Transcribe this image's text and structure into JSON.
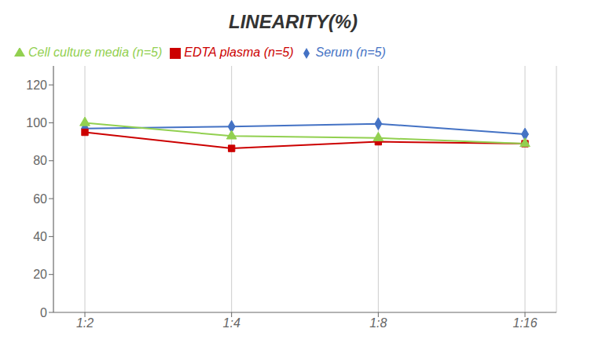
{
  "chart_data": {
    "type": "line",
    "title": "LINEARITY(%)",
    "categories": [
      "1:2",
      "1:4",
      "1:8",
      "1:16"
    ],
    "series": [
      {
        "name": "Serum (n=5)",
        "color": "#4472C4",
        "marker": "diamond",
        "values": [
          97,
          98,
          99.5,
          94
        ]
      },
      {
        "name": "EDTA plasma (n=5)",
        "color": "#CC0000",
        "marker": "square",
        "values": [
          95,
          86.5,
          90,
          89
        ]
      },
      {
        "name": "Cell culture media (n=5)",
        "color": "#92D050",
        "marker": "triangle",
        "values": [
          100,
          93,
          92,
          89
        ]
      }
    ],
    "ylim": [
      0,
      130
    ],
    "yticks": [
      0,
      20,
      40,
      60,
      80,
      100,
      120
    ],
    "grid": true,
    "legend": "top"
  }
}
